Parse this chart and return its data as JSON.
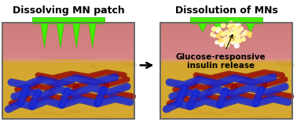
{
  "title_left": "Dissolving MN patch",
  "title_right": "Dissolution of MNs",
  "annotation_text": "Glucose-responsive\ninsulin release",
  "bg_color": "#ffffff",
  "skin_pink_color": "#cc7777",
  "skin_pink_light": "#e09090",
  "skin_yellow_color": "#d4a830",
  "skin_yellow_light": "#e8c040",
  "needle_green": "#44ee00",
  "needle_green2": "#33bb00",
  "blood_dark": "#880000",
  "blood_mid": "#aa1111",
  "vessel_blue": "#1122cc",
  "vessel_blue2": "#2233dd",
  "particle_colors": [
    "#ffffff",
    "#ffff99",
    "#ffeeaa",
    "#ffffcc",
    "#ffdd66"
  ],
  "border_color": "#666666",
  "title_fontsize": 9,
  "annot_fontsize": 7.5
}
